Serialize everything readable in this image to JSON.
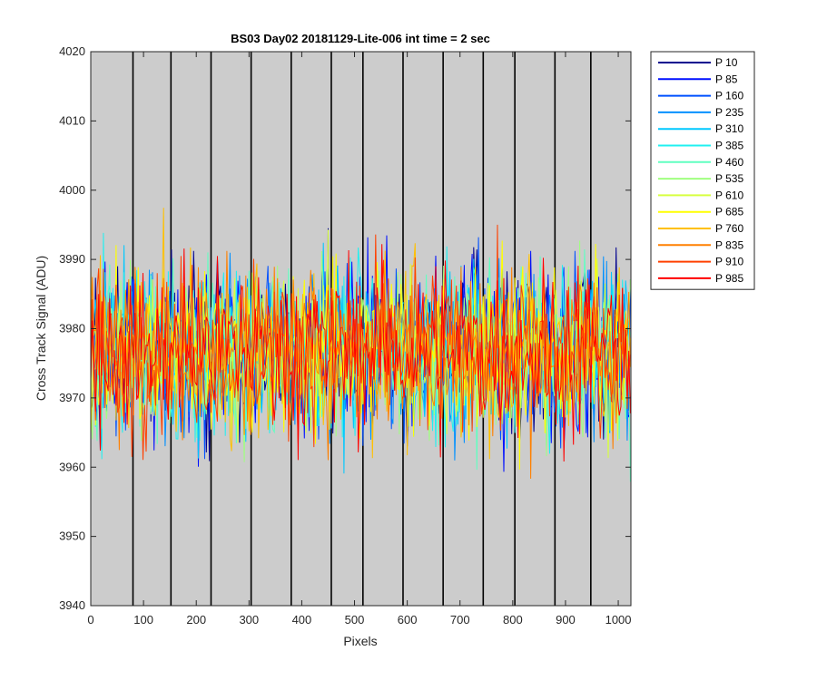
{
  "chart_data": {
    "type": "line",
    "title": "BS03 Day02 20181129-Lite-006 int time = 2 sec",
    "xlabel": "Pixels",
    "ylabel": "Cross Track Signal (ADU)",
    "xlim": [
      0,
      1024
    ],
    "ylim": [
      3940,
      4020
    ],
    "xticks": [
      0,
      100,
      200,
      300,
      400,
      500,
      600,
      700,
      800,
      900,
      1000
    ],
    "yticks": [
      3940,
      3950,
      3960,
      3970,
      3980,
      3990,
      4000,
      4010,
      4020
    ],
    "background": "#cccccc",
    "grid": false,
    "legend_position": "outside-right",
    "vertical_dividers": [
      80,
      152,
      228,
      304,
      380,
      456,
      516,
      592,
      668,
      744,
      804,
      880,
      948
    ],
    "noise_center": 3977,
    "noise_sigma": 6,
    "series": [
      {
        "name": "P 10",
        "color": "#00008f"
      },
      {
        "name": "P 85",
        "color": "#0010ff"
      },
      {
        "name": "P 160",
        "color": "#0050ff"
      },
      {
        "name": "P 235",
        "color": "#0090ff"
      },
      {
        "name": "P 310",
        "color": "#00c8ff"
      },
      {
        "name": "P 385",
        "color": "#20f0f0"
      },
      {
        "name": "P 460",
        "color": "#60ffc0"
      },
      {
        "name": "P 535",
        "color": "#a0ff80"
      },
      {
        "name": "P 610",
        "color": "#d8ff40"
      },
      {
        "name": "P 685",
        "color": "#ffff00"
      },
      {
        "name": "P 760",
        "color": "#ffc000"
      },
      {
        "name": "P 835",
        "color": "#ff8000"
      },
      {
        "name": "P 910",
        "color": "#ff4000"
      },
      {
        "name": "P 985",
        "color": "#ff0000"
      }
    ]
  }
}
